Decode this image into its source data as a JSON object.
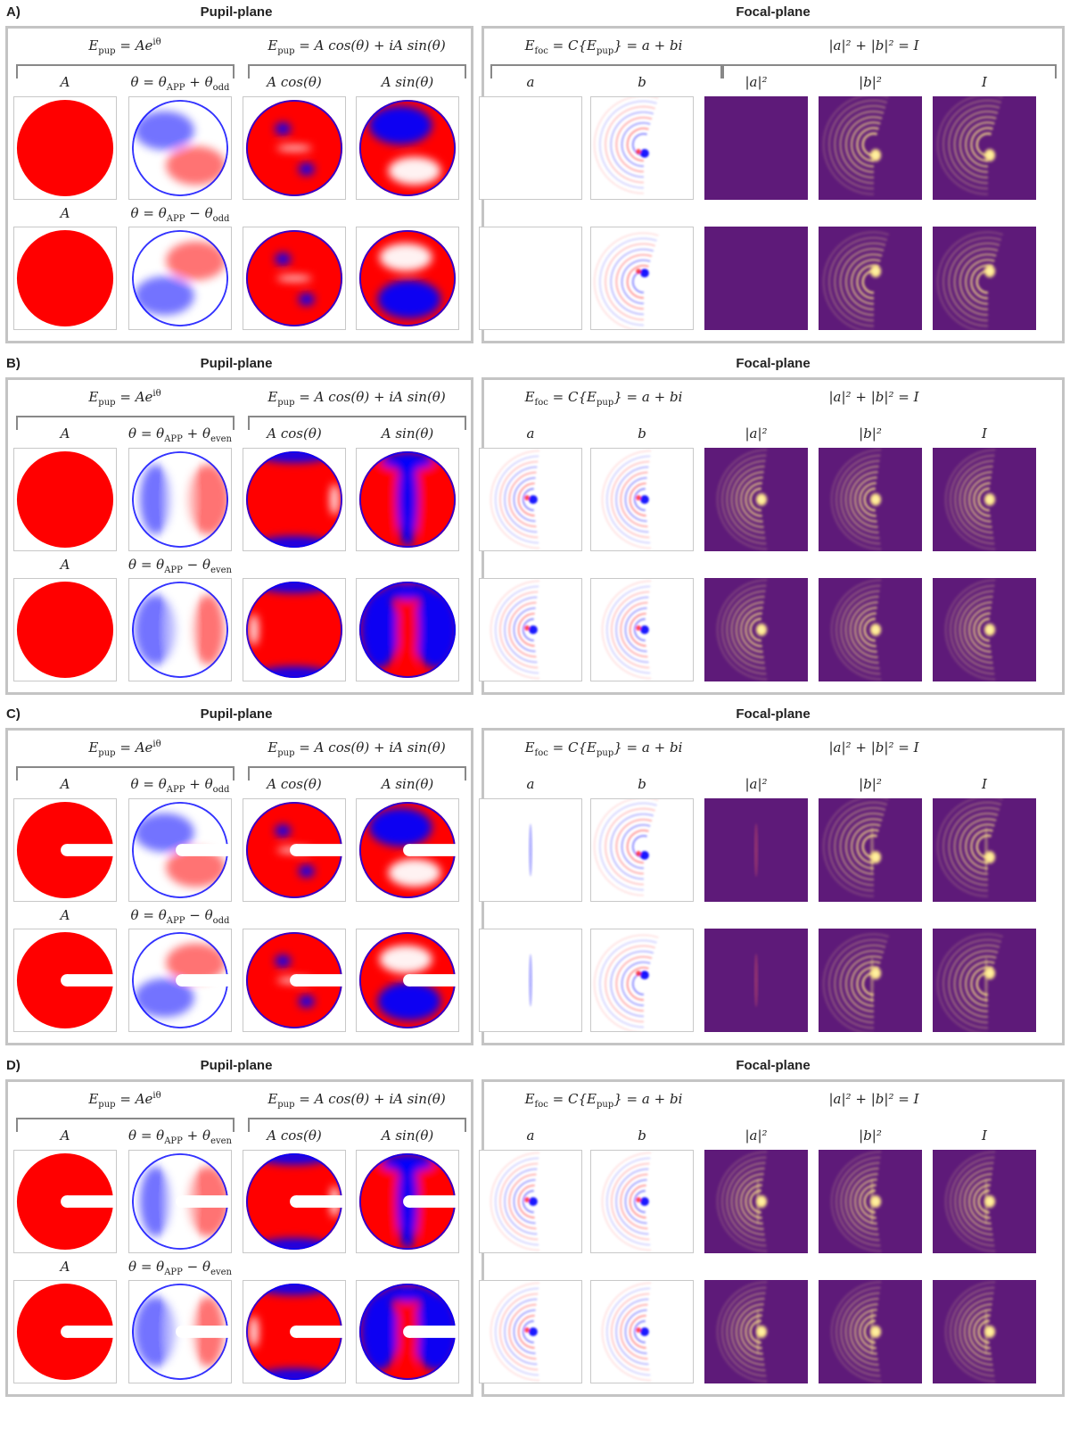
{
  "panels": [
    {
      "letter": "A)",
      "pupil_title": "Pupil-plane",
      "focal_title": "Focal-plane",
      "eq_pup_exp": "E_pup = Ae^{iθ}",
      "eq_pup_trig": "E_pup = A cos(θ) + iA sin(θ)",
      "eq_foc": "E_foc = C{E_pup} = a + bi",
      "eq_int": "|a|² + |b|² = I",
      "label_A": "A",
      "label_theta_plus": "θ = θ_APP + θ_odd",
      "label_theta_minus": "θ = θ_APP − θ_odd",
      "label_cos": "A cos(θ)",
      "label_sin": "A sin(θ)",
      "label_a": "a",
      "label_b": "b",
      "label_a2": "|a|²",
      "label_b2": "|b|²",
      "label_I": "I",
      "parity": "odd",
      "spider": false
    },
    {
      "letter": "B)",
      "pupil_title": "Pupil-plane",
      "focal_title": "Focal-plane",
      "eq_pup_exp": "E_pup = Ae^{iθ}",
      "eq_pup_trig": "E_pup = A cos(θ) + iA sin(θ)",
      "eq_foc": "E_foc = C{E_pup} = a + bi",
      "eq_int": "|a|² + |b|² = I",
      "label_A": "A",
      "label_theta_plus": "θ = θ_APP + θ_even",
      "label_theta_minus": "θ = θ_APP − θ_even",
      "label_cos": "A cos(θ)",
      "label_sin": "A sin(θ)",
      "label_a": "a",
      "label_b": "b",
      "label_a2": "|a|²",
      "label_b2": "|b|²",
      "label_I": "I",
      "parity": "even",
      "spider": false
    },
    {
      "letter": "C)",
      "pupil_title": "Pupil-plane",
      "focal_title": "Focal-plane",
      "eq_pup_exp": "E_pup = Ae^{iθ}",
      "eq_pup_trig": "E_pup = A cos(θ) + iA sin(θ)",
      "eq_foc": "E_foc = C{E_pup} = a + bi",
      "eq_int": "|a|² + |b|² = I",
      "label_A": "A",
      "label_theta_plus": "θ = θ_APP + θ_odd",
      "label_theta_minus": "θ = θ_APP − θ_odd",
      "label_cos": "A cos(θ)",
      "label_sin": "A sin(θ)",
      "label_a": "a",
      "label_b": "b",
      "label_a2": "|a|²",
      "label_b2": "|b|²",
      "label_I": "I",
      "parity": "odd",
      "spider": true
    },
    {
      "letter": "D)",
      "pupil_title": "Pupil-plane",
      "focal_title": "Focal-plane",
      "eq_pup_exp": "E_pup = Ae^{iθ}",
      "eq_pup_trig": "E_pup = A cos(θ) + iA sin(θ)",
      "eq_foc": "E_foc = C{E_pup} = a + bi",
      "eq_int": "|a|² + |b|² = I",
      "label_A": "A",
      "label_theta_plus": "θ = θ_APP + θ_even",
      "label_theta_minus": "θ = θ_APP − θ_even",
      "label_cos": "A cos(θ)",
      "label_sin": "A sin(θ)",
      "label_a": "a",
      "label_b": "b",
      "label_a2": "|a|²",
      "label_b2": "|b|²",
      "label_I": "I",
      "parity": "even",
      "spider": true
    }
  ],
  "colors": {
    "red": "#ff0000",
    "blue": "#0000ff",
    "intensity_bg": "#5e1a79",
    "intensity_peak": "#fde58a",
    "box_border": "#c4c4c4"
  }
}
